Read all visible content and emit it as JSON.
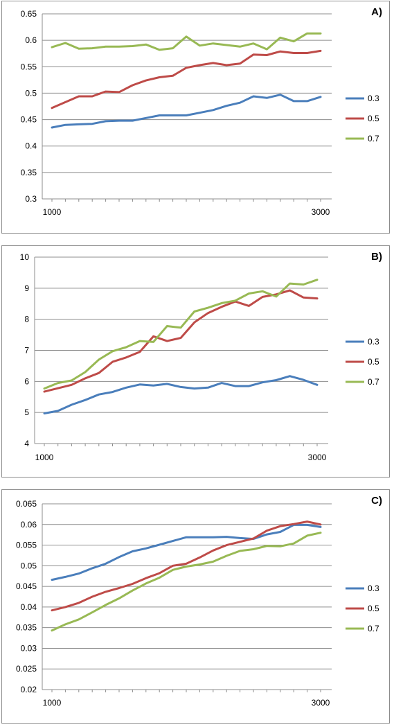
{
  "chart_data": [
    {
      "type": "line",
      "title": "A)",
      "x_ticks": [
        "1000",
        "3000"
      ],
      "x": [
        1000,
        1100,
        1200,
        1300,
        1400,
        1500,
        1600,
        1700,
        1800,
        1900,
        2000,
        2100,
        2200,
        2300,
        2400,
        2500,
        2600,
        2700,
        2800,
        2900,
        3000
      ],
      "ylim": [
        0.3,
        0.65
      ],
      "y_ticks": [
        "0.3",
        "0.35",
        "0.4",
        "0.45",
        "0.5",
        "0.55",
        "0.6",
        "0.65"
      ],
      "grid": true,
      "legend_position": "right",
      "series": [
        {
          "name": "0.3",
          "color": "#4a7ebb",
          "values": [
            0.435,
            0.44,
            0.441,
            0.442,
            0.447,
            0.448,
            0.448,
            0.453,
            0.458,
            0.458,
            0.458,
            0.463,
            0.468,
            0.476,
            0.482,
            0.494,
            0.491,
            0.497,
            0.485,
            0.485,
            0.493
          ]
        },
        {
          "name": "0.5",
          "color": "#be4b48",
          "values": [
            0.472,
            0.483,
            0.494,
            0.494,
            0.503,
            0.502,
            0.515,
            0.524,
            0.53,
            0.533,
            0.548,
            0.553,
            0.557,
            0.553,
            0.556,
            0.573,
            0.572,
            0.579,
            0.576,
            0.576,
            0.58
          ]
        },
        {
          "name": "0.7",
          "color": "#98b954",
          "values": [
            0.587,
            0.595,
            0.584,
            0.585,
            0.588,
            0.588,
            0.589,
            0.592,
            0.582,
            0.585,
            0.607,
            0.59,
            0.594,
            0.591,
            0.588,
            0.594,
            0.583,
            0.605,
            0.598,
            0.613,
            0.613
          ]
        }
      ]
    },
    {
      "type": "line",
      "title": "B)",
      "x_ticks": [
        "1000",
        "3000"
      ],
      "x": [
        1000,
        1100,
        1200,
        1300,
        1400,
        1500,
        1600,
        1700,
        1800,
        1900,
        2000,
        2100,
        2200,
        2300,
        2400,
        2500,
        2600,
        2700,
        2800,
        2900,
        3000
      ],
      "ylim": [
        4,
        10
      ],
      "y_ticks": [
        "4",
        "5",
        "6",
        "7",
        "8",
        "9",
        "10"
      ],
      "grid": true,
      "legend_position": "right",
      "series": [
        {
          "name": "0.3",
          "color": "#4a7ebb",
          "values": [
            4.97,
            5.05,
            5.25,
            5.4,
            5.58,
            5.66,
            5.8,
            5.9,
            5.87,
            5.92,
            5.82,
            5.77,
            5.8,
            5.95,
            5.85,
            5.85,
            5.97,
            6.04,
            6.17,
            6.05,
            5.89
          ]
        },
        {
          "name": "0.5",
          "color": "#be4b48",
          "values": [
            5.67,
            5.78,
            5.89,
            6.1,
            6.27,
            6.63,
            6.77,
            6.95,
            7.45,
            7.3,
            7.4,
            7.9,
            8.2,
            8.4,
            8.57,
            8.43,
            8.72,
            8.8,
            8.93,
            8.7,
            8.67
          ]
        },
        {
          "name": "0.7",
          "color": "#98b954",
          "values": [
            5.77,
            5.95,
            6.03,
            6.3,
            6.7,
            6.97,
            7.1,
            7.3,
            7.27,
            7.78,
            7.73,
            8.25,
            8.37,
            8.52,
            8.6,
            8.83,
            8.9,
            8.73,
            9.15,
            9.12,
            9.27
          ]
        }
      ]
    },
    {
      "type": "line",
      "title": "C)",
      "x_ticks": [
        "1000",
        "3000"
      ],
      "x": [
        1000,
        1100,
        1200,
        1300,
        1400,
        1500,
        1600,
        1700,
        1800,
        1900,
        2000,
        2100,
        2200,
        2300,
        2400,
        2500,
        2600,
        2700,
        2800,
        2900,
        3000
      ],
      "ylim": [
        0.02,
        0.065
      ],
      "y_ticks": [
        "0.02",
        "0.025",
        "0.03",
        "0.035",
        "0.04",
        "0.045",
        "0.05",
        "0.055",
        "0.06",
        "0.065"
      ],
      "grid": true,
      "legend_position": "right",
      "series": [
        {
          "name": "0.3",
          "color": "#4a7ebb",
          "values": [
            0.0466,
            0.0473,
            0.0481,
            0.0494,
            0.0505,
            0.0521,
            0.0535,
            0.0542,
            0.0551,
            0.056,
            0.0569,
            0.0569,
            0.0569,
            0.057,
            0.0567,
            0.0565,
            0.0576,
            0.0582,
            0.0599,
            0.0599,
            0.0594
          ]
        },
        {
          "name": "0.5",
          "color": "#be4b48",
          "values": [
            0.0392,
            0.04,
            0.041,
            0.0425,
            0.0437,
            0.0446,
            0.0456,
            0.047,
            0.0482,
            0.05,
            0.0505,
            0.052,
            0.0537,
            0.055,
            0.0558,
            0.0566,
            0.0585,
            0.0596,
            0.0601,
            0.0607,
            0.06
          ]
        },
        {
          "name": "0.7",
          "color": "#98b954",
          "values": [
            0.0343,
            0.0358,
            0.037,
            0.0387,
            0.0405,
            0.0421,
            0.044,
            0.0457,
            0.0471,
            0.049,
            0.0498,
            0.0503,
            0.051,
            0.0524,
            0.0536,
            0.054,
            0.0548,
            0.0547,
            0.0554,
            0.0573,
            0.058
          ]
        }
      ]
    }
  ]
}
